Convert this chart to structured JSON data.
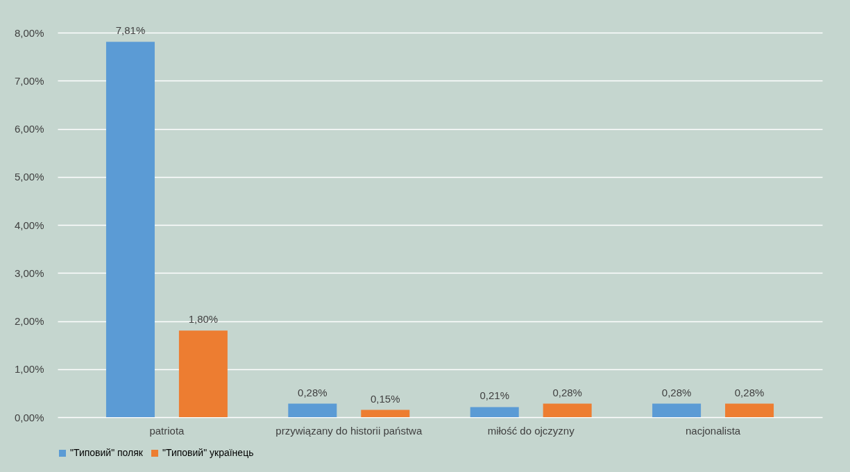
{
  "chart_data": {
    "type": "bar",
    "categories": [
      "patriota",
      "przywiązany do historii państwa",
      "miłość do ojczyzny",
      "nacjonalista"
    ],
    "series": [
      {
        "name": "\"Типовий\" поляк",
        "color": "#5b9bd5",
        "values": [
          7.81,
          0.28,
          0.21,
          0.28
        ],
        "value_labels": [
          "7,81%",
          "0,28%",
          "0,21%",
          "0,28%"
        ]
      },
      {
        "name": "\"Типовий\" українець",
        "color": "#ed7d31",
        "values": [
          1.8,
          0.15,
          0.28,
          0.28
        ],
        "value_labels": [
          "1,80%",
          "0,15%",
          "0,28%",
          "0,28%"
        ]
      }
    ],
    "ylim": [
      0,
      8
    ],
    "yticks": [
      {
        "value": 0,
        "label": "0,00%"
      },
      {
        "value": 1,
        "label": "1,00%"
      },
      {
        "value": 2,
        "label": "2,00%"
      },
      {
        "value": 3,
        "label": "3,00%"
      },
      {
        "value": 4,
        "label": "4,00%"
      },
      {
        "value": 5,
        "label": "5,00%"
      },
      {
        "value": 6,
        "label": "6,00%"
      },
      {
        "value": 7,
        "label": "7,00%"
      },
      {
        "value": 8,
        "label": "8,00%"
      }
    ],
    "grid": "y",
    "legend": "bottom"
  }
}
